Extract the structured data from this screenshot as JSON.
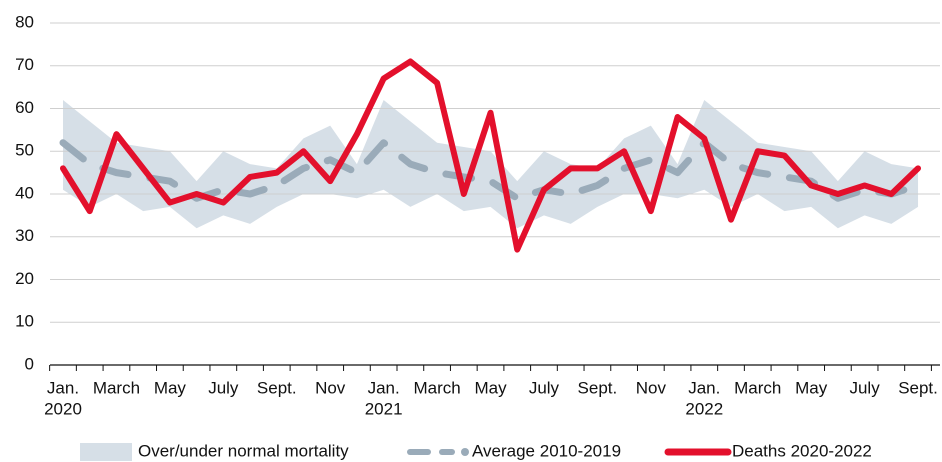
{
  "chart_data": {
    "type": "line",
    "categories": [
      "Jan.",
      null,
      "March",
      null,
      "May",
      null,
      "July",
      null,
      "Sept.",
      null,
      "Nov",
      null,
      "Jan.",
      null,
      "March",
      null,
      "May",
      null,
      "July",
      null,
      "Sept.",
      null,
      "Nov",
      null,
      "Jan.",
      null,
      "March",
      null,
      "May",
      null,
      "July",
      null,
      "Sept."
    ],
    "year_labels": [
      {
        "index": 0,
        "label": "2020"
      },
      {
        "index": 12,
        "label": "2021"
      },
      {
        "index": 24,
        "label": "2022"
      }
    ],
    "ylim": [
      0,
      80
    ],
    "yticks": [
      0,
      10,
      20,
      30,
      40,
      50,
      60,
      70,
      80
    ],
    "grid": true,
    "legend": "bottom",
    "band": {
      "name": "Over/under normal mortality",
      "color": "#d6dfe7",
      "upper": [
        62,
        57,
        52,
        51,
        50,
        43,
        50,
        47,
        46,
        53,
        56,
        47,
        62,
        57,
        52,
        51,
        50,
        43,
        50,
        47,
        46,
        53,
        56,
        47,
        62,
        57,
        52,
        51,
        50,
        43,
        50,
        47,
        46
      ],
      "lower": [
        41,
        37,
        40,
        36,
        37,
        32,
        35,
        33,
        37,
        40,
        40,
        39,
        41,
        37,
        40,
        36,
        37,
        32,
        35,
        33,
        37,
        40,
        40,
        39,
        41,
        37,
        40,
        36,
        37,
        32,
        35,
        33,
        37
      ]
    },
    "series": [
      {
        "name": "Average 2010-2019",
        "color": "#9aabb9",
        "style": "dashed",
        "values": [
          52,
          47,
          45,
          44,
          43,
          39,
          41,
          40,
          42,
          46,
          48,
          45,
          52,
          47,
          45,
          44,
          43,
          39,
          41,
          40,
          42,
          46,
          48,
          45,
          52,
          47,
          45,
          44,
          43,
          39,
          41,
          40,
          42
        ]
      },
      {
        "name": "Deaths 2020-2022",
        "color": "#e3102c",
        "style": "solid",
        "values": [
          46,
          36,
          54,
          46,
          38,
          40,
          38,
          44,
          45,
          50,
          43,
          54,
          67,
          71,
          66,
          40,
          59,
          27,
          41,
          46,
          46,
          50,
          36,
          58,
          53,
          34,
          50,
          49,
          42,
          40,
          42,
          40,
          46
        ]
      }
    ]
  }
}
